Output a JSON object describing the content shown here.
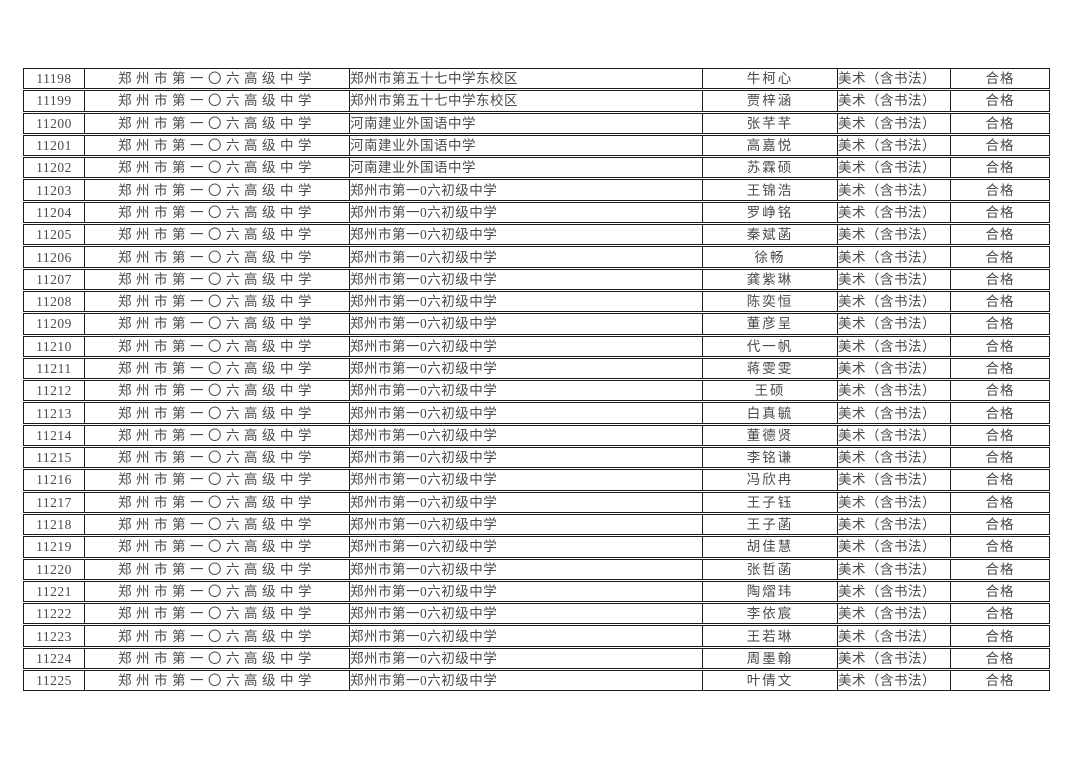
{
  "page": {
    "background_color": "#ffffff",
    "border_color": "#1c1c1c",
    "text_color": "#4a4a4a"
  },
  "table": {
    "columns": [
      {
        "key": "id"
      },
      {
        "key": "school"
      },
      {
        "key": "origin"
      },
      {
        "key": "name"
      },
      {
        "key": "subject"
      },
      {
        "key": "result"
      }
    ],
    "rows": [
      [
        "11198",
        "郑州市第一〇六高级中学",
        "郑州市第五十七中学东校区",
        "牛柯心",
        "美术（含书法）",
        "合格"
      ],
      [
        "11199",
        "郑州市第一〇六高级中学",
        "郑州市第五十七中学东校区",
        "贾梓涵",
        "美术（含书法）",
        "合格"
      ],
      [
        "11200",
        "郑州市第一〇六高级中学",
        "河南建业外国语中学",
        "张芊芊",
        "美术（含书法）",
        "合格"
      ],
      [
        "11201",
        "郑州市第一〇六高级中学",
        "河南建业外国语中学",
        "高嘉悦",
        "美术（含书法）",
        "合格"
      ],
      [
        "11202",
        "郑州市第一〇六高级中学",
        "河南建业外国语中学",
        "苏霖硕",
        "美术（含书法）",
        "合格"
      ],
      [
        "11203",
        "郑州市第一〇六高级中学",
        "郑州市第一0六初级中学",
        "王锦浩",
        "美术（含书法）",
        "合格"
      ],
      [
        "11204",
        "郑州市第一〇六高级中学",
        "郑州市第一0六初级中学",
        "罗峥铭",
        "美术（含书法）",
        "合格"
      ],
      [
        "11205",
        "郑州市第一〇六高级中学",
        "郑州市第一0六初级中学",
        "秦斌菡",
        "美术（含书法）",
        "合格"
      ],
      [
        "11206",
        "郑州市第一〇六高级中学",
        "郑州市第一0六初级中学",
        "徐畅",
        "美术（含书法）",
        "合格"
      ],
      [
        "11207",
        "郑州市第一〇六高级中学",
        "郑州市第一0六初级中学",
        "龚紫琳",
        "美术（含书法）",
        "合格"
      ],
      [
        "11208",
        "郑州市第一〇六高级中学",
        "郑州市第一0六初级中学",
        "陈奕恒",
        "美术（含书法）",
        "合格"
      ],
      [
        "11209",
        "郑州市第一〇六高级中学",
        "郑州市第一0六初级中学",
        "董彦呈",
        "美术（含书法）",
        "合格"
      ],
      [
        "11210",
        "郑州市第一〇六高级中学",
        "郑州市第一0六初级中学",
        "代一帆",
        "美术（含书法）",
        "合格"
      ],
      [
        "11211",
        "郑州市第一〇六高级中学",
        "郑州市第一0六初级中学",
        "蒋雯雯",
        "美术（含书法）",
        "合格"
      ],
      [
        "11212",
        "郑州市第一〇六高级中学",
        "郑州市第一0六初级中学",
        "王硕",
        "美术（含书法）",
        "合格"
      ],
      [
        "11213",
        "郑州市第一〇六高级中学",
        "郑州市第一0六初级中学",
        "白真毓",
        "美术（含书法）",
        "合格"
      ],
      [
        "11214",
        "郑州市第一〇六高级中学",
        "郑州市第一0六初级中学",
        "董德贤",
        "美术（含书法）",
        "合格"
      ],
      [
        "11215",
        "郑州市第一〇六高级中学",
        "郑州市第一0六初级中学",
        "李铭谦",
        "美术（含书法）",
        "合格"
      ],
      [
        "11216",
        "郑州市第一〇六高级中学",
        "郑州市第一0六初级中学",
        "冯欣冉",
        "美术（含书法）",
        "合格"
      ],
      [
        "11217",
        "郑州市第一〇六高级中学",
        "郑州市第一0六初级中学",
        "王子钰",
        "美术（含书法）",
        "合格"
      ],
      [
        "11218",
        "郑州市第一〇六高级中学",
        "郑州市第一0六初级中学",
        "王子菡",
        "美术（含书法）",
        "合格"
      ],
      [
        "11219",
        "郑州市第一〇六高级中学",
        "郑州市第一0六初级中学",
        "胡佳慧",
        "美术（含书法）",
        "合格"
      ],
      [
        "11220",
        "郑州市第一〇六高级中学",
        "郑州市第一0六初级中学",
        "张哲菡",
        "美术（含书法）",
        "合格"
      ],
      [
        "11221",
        "郑州市第一〇六高级中学",
        "郑州市第一0六初级中学",
        "陶熠玮",
        "美术（含书法）",
        "合格"
      ],
      [
        "11222",
        "郑州市第一〇六高级中学",
        "郑州市第一0六初级中学",
        "李依宸",
        "美术（含书法）",
        "合格"
      ],
      [
        "11223",
        "郑州市第一〇六高级中学",
        "郑州市第一0六初级中学",
        "王若琳",
        "美术（含书法）",
        "合格"
      ],
      [
        "11224",
        "郑州市第一〇六高级中学",
        "郑州市第一0六初级中学",
        "周墨翰",
        "美术（含书法）",
        "合格"
      ],
      [
        "11225",
        "郑州市第一〇六高级中学",
        "郑州市第一0六初级中学",
        "叶倩文",
        "美术（含书法）",
        "合格"
      ]
    ]
  }
}
